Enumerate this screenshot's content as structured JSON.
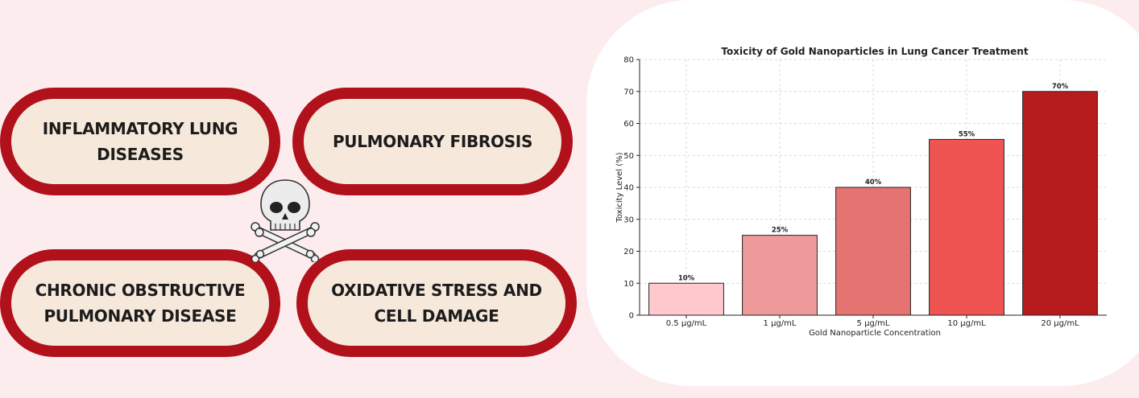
{
  "pills": [
    {
      "line1": "INFLAMMATORY LUNG",
      "line2": "DISEASES"
    },
    {
      "line1": "PULMONARY FIBROSIS",
      "line2": ""
    },
    {
      "line1": "CHRONIC OBSTRUCTIVE",
      "line2": "PULMONARY DISEASE"
    },
    {
      "line1": "OXIDATIVE STRESS AND",
      "line2": "CELL DAMAGE"
    }
  ],
  "colors": {
    "pill_border": "#b0111a",
    "pill_fill": "#f6e8db",
    "background": "#fdecee"
  },
  "icon": "skull-and-crossbones-icon",
  "chart_data": {
    "type": "bar",
    "title": "Toxicity of Gold Nanoparticles in Lung Cancer Treatment",
    "xlabel": "Gold Nanoparticle Concentration",
    "ylabel": "Toxicity Level (%)",
    "categories": [
      "0.5 µg/mL",
      "1 µg/mL",
      "5 µg/mL",
      "10 µg/mL",
      "20 µg/mL"
    ],
    "values": [
      10,
      25,
      40,
      55,
      70
    ],
    "value_labels": [
      "10%",
      "25%",
      "40%",
      "55%",
      "70%"
    ],
    "bar_colors": [
      "#ffc9ce",
      "#ee9a9b",
      "#e57372",
      "#ef5352",
      "#b71c1c"
    ],
    "ylim": [
      0,
      80
    ],
    "yticks": [
      0,
      10,
      20,
      30,
      40,
      50,
      60,
      70,
      80
    ],
    "grid": true
  }
}
